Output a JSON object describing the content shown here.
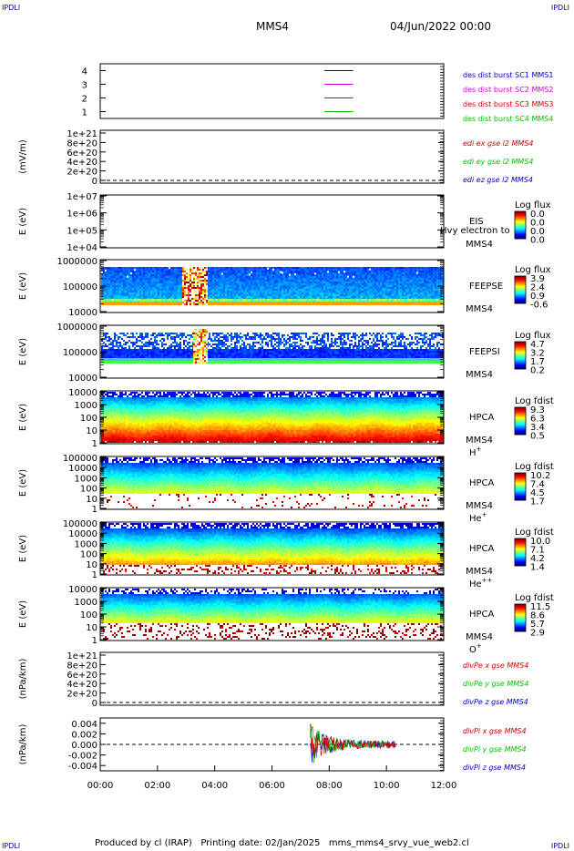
{
  "corners": {
    "tl": "IPDLI",
    "tr": "IPDLI",
    "bl": "IPDLI",
    "br": "IPDLI"
  },
  "header": {
    "spacecraft": "MMS4",
    "date": "04/Jun/2022 00:00"
  },
  "footer": {
    "text": "Produced by cl (IRAP)   Printing date: 02/Jan/2025   mms_mms4_srvy_vue_web2.cl"
  },
  "colors": {
    "red": "#d00000",
    "magenta": "#d000d0",
    "green": "#00c000",
    "blue": "#0000c0"
  },
  "chart_data": [
    {
      "type": "line",
      "id": "burst",
      "xlim": [
        "00:00",
        "12:00"
      ],
      "ylim": [
        0.5,
        4.5
      ],
      "yticks": [
        "1",
        "2",
        "3",
        "4"
      ],
      "series": [
        {
          "name": "des dist burst SC1 MMS1",
          "color": "#0000c0",
          "y": 4,
          "x": [
            "07:50",
            "08:50"
          ]
        },
        {
          "name": "des dist burst SC2 MMS2",
          "color": "#d000d0",
          "y": 3,
          "x": [
            "07:50",
            "08:50"
          ]
        },
        {
          "name": "des dist burst SC3 MMS3",
          "color": "#d00000",
          "y": 2,
          "x": [
            "07:50",
            "08:50"
          ]
        },
        {
          "name": "des dist burst SC4 MMS4",
          "color": "#00c000",
          "y": 1,
          "x": [
            "07:50",
            "08:50"
          ]
        }
      ]
    },
    {
      "type": "line",
      "id": "edi",
      "ylabel": "(mV/m)",
      "yticks": [
        "0",
        "2e+20",
        "4e+20",
        "6e+20",
        "8e+20",
        "1e+21"
      ],
      "series": [
        {
          "name": "edi ex gse l2 MMS4",
          "color": "#d00000"
        },
        {
          "name": "edi ey gse l2 MMS4",
          "color": "#00c000"
        },
        {
          "name": "edi ez gse l2 MMS4",
          "color": "#0000c0"
        }
      ]
    },
    {
      "type": "heatmap",
      "id": "eis",
      "ylabel": "E (eV)",
      "yticks": [
        "1e+04",
        "1e+05",
        "1e+06",
        "1e+07"
      ],
      "label": "EIS",
      "sub": "MMS4",
      "extra": "Hvy electron to",
      "cbar_title": "Log flux",
      "cbar_ticks": [
        "0.0",
        "0.0",
        "0.0",
        "0.0"
      ]
    },
    {
      "type": "heatmap",
      "id": "feepse",
      "ylabel": "E (eV)",
      "yticks": [
        "10000",
        "100000",
        "1000000"
      ],
      "label": "FEEPSE",
      "sub": "MMS4",
      "cbar_title": "Log flux",
      "cbar_ticks": [
        "3.9",
        "2.4",
        "0.9",
        "-0.6"
      ]
    },
    {
      "type": "heatmap",
      "id": "feepsi",
      "ylabel": "E (eV)",
      "yticks": [
        "10000",
        "100000",
        "1000000"
      ],
      "label": "FEEPSI",
      "sub": "MMS4",
      "cbar_title": "Log flux",
      "cbar_ticks": [
        "4.7",
        "3.2",
        "1.7",
        "0.2"
      ]
    },
    {
      "type": "heatmap",
      "id": "hpca_h",
      "ylabel": "E (eV)",
      "yticks": [
        "1",
        "10",
        "100",
        "1000",
        "10000"
      ],
      "label": "HPCA",
      "sub": "MMS4",
      "species": "H",
      "charge": "+",
      "cbar_title": "Log fdist",
      "cbar_ticks": [
        "9.3",
        "6.3",
        "3.4",
        "0.5"
      ]
    },
    {
      "type": "heatmap",
      "id": "hpca_he1",
      "ylabel": "E (eV)",
      "yticks": [
        "1",
        "10",
        "100",
        "1000",
        "10000",
        "100000"
      ],
      "label": "HPCA",
      "sub": "MMS4",
      "species": "He",
      "charge": "+",
      "cbar_title": "Log fdist",
      "cbar_ticks": [
        "10.2",
        "7.4",
        "4.5",
        "1.7"
      ]
    },
    {
      "type": "heatmap",
      "id": "hpca_he2",
      "ylabel": "E (eV)",
      "yticks": [
        "1",
        "10",
        "100",
        "1000",
        "10000",
        "100000"
      ],
      "label": "HPCA",
      "sub": "MMS4",
      "species": "He",
      "charge": "++",
      "cbar_title": "Log fdist",
      "cbar_ticks": [
        "10.0",
        "7.1",
        "4.2",
        "1.4"
      ]
    },
    {
      "type": "heatmap",
      "id": "hpca_o",
      "ylabel": "E (eV)",
      "yticks": [
        "1",
        "10",
        "100",
        "1000",
        "10000"
      ],
      "label": "HPCA",
      "sub": "MMS4",
      "species": "O",
      "charge": "+",
      "cbar_title": "Log fdist",
      "cbar_ticks": [
        "11.5",
        "8.6",
        "5.7",
        "2.9"
      ]
    },
    {
      "type": "line",
      "id": "divpe",
      "ylabel": "(nPa/km)",
      "yticks": [
        "0",
        "2e+20",
        "4e+20",
        "6e+20",
        "8e+20",
        "1e+21"
      ],
      "series": [
        {
          "name": "divPe x gse MMS4",
          "color": "#d00000"
        },
        {
          "name": "divPe y gse MMS4",
          "color": "#00c000"
        },
        {
          "name": "divPe z gse MMS4",
          "color": "#0000c0"
        }
      ]
    },
    {
      "type": "line",
      "id": "divpi",
      "ylabel": "(nPa/km)",
      "ylim": [
        -0.005,
        0.005
      ],
      "yticks": [
        "-0.004",
        "-0.002",
        "0.000",
        "0.002",
        "0.004"
      ],
      "xticks": [
        "00:00",
        "02:00",
        "04:00",
        "06:00",
        "08:00",
        "10:00",
        "12:00"
      ],
      "data_span": [
        "07:20",
        "10:20"
      ],
      "series": [
        {
          "name": "divPi x gse MMS4",
          "color": "#d00000"
        },
        {
          "name": "divPi y gse MMS4",
          "color": "#00c000"
        },
        {
          "name": "divPi z gse MMS4",
          "color": "#0000c0"
        }
      ]
    }
  ]
}
